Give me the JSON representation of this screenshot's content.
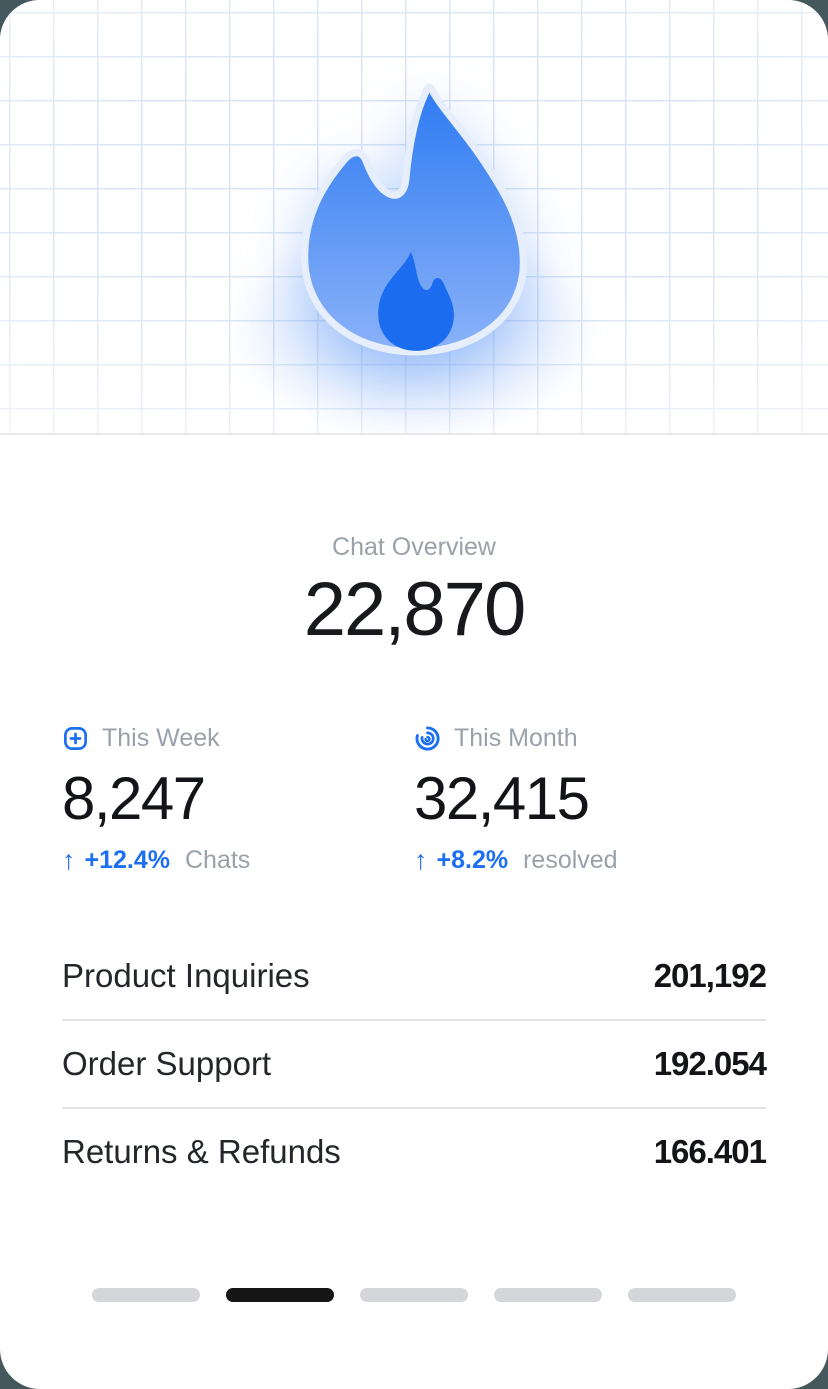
{
  "overview": {
    "label": "Chat Overview",
    "total": "22,870"
  },
  "hero": {
    "icon": "flame-icon",
    "flame_gradient_top": "#2d7bf2",
    "flame_gradient_bottom": "#8bb2f8",
    "inner_flame_color": "#1c6cf0",
    "outline_color": "#e6eefc",
    "grid_line_color": "#dbe5f5"
  },
  "stats": [
    {
      "icon": "plus-square-icon",
      "label": "This Week",
      "value": "8,247",
      "delta_arrow": "↑",
      "delta": "+12.4%",
      "delta_suffix": "Chats"
    },
    {
      "icon": "spiral-icon",
      "label": "This Month",
      "value": "32,415",
      "delta_arrow": "↑",
      "delta": "+8.2%",
      "delta_suffix": "resolved"
    }
  ],
  "categories": [
    {
      "label": "Product Inquiries",
      "value": "201,192"
    },
    {
      "label": "Order Support",
      "value": "192.054"
    },
    {
      "label": "Returns & Refunds",
      "value": "166.401"
    }
  ],
  "pagination": {
    "count": 5,
    "active_index": 1
  },
  "colors": {
    "accent_blue": "#1d6ff2",
    "muted_gray": "#9aa1ab",
    "text_dark": "#17191c",
    "active_bar": "#151515",
    "inactive_bar": "#d5d6d9",
    "outer_background": "#45585d"
  }
}
